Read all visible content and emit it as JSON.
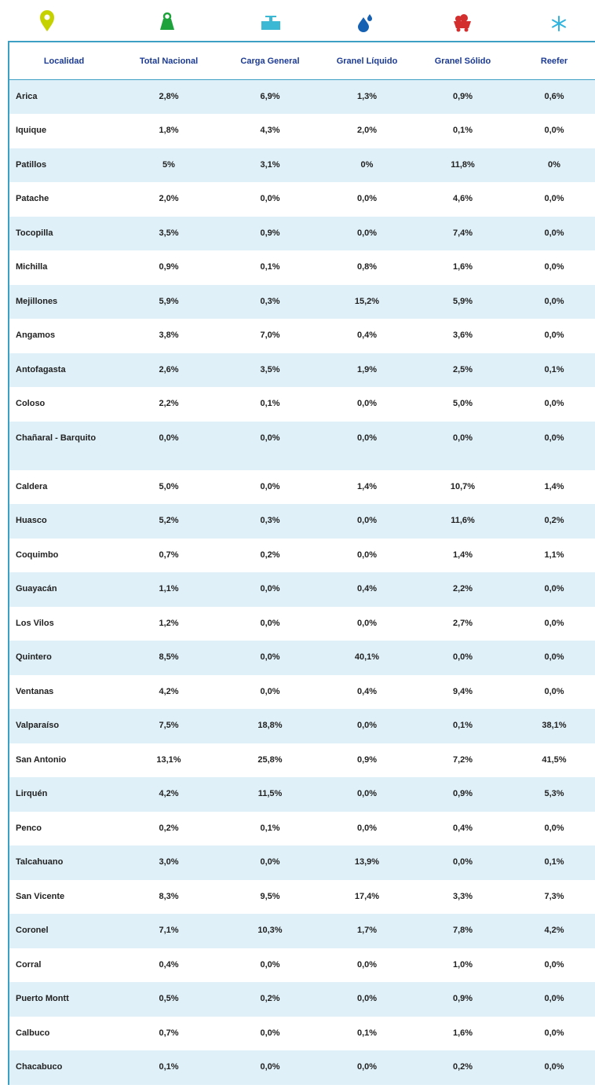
{
  "table": {
    "header": [
      "Localidad",
      "Total Nacional",
      "Carga General",
      "Granel Líquido",
      "Granel Sólido",
      "Reefer"
    ],
    "rows": [
      [
        "Arica",
        "2,8%",
        "6,9%",
        "1,3%",
        "0,9%",
        "0,6%"
      ],
      [
        "Iquique",
        "1,8%",
        "4,3%",
        "2,0%",
        "0,1%",
        "0,0%"
      ],
      [
        "Patillos",
        "5%",
        "3,1%",
        "0%",
        "11,8%",
        "0%"
      ],
      [
        "Patache",
        "2,0%",
        "0,0%",
        "0,0%",
        "4,6%",
        "0,0%"
      ],
      [
        "Tocopilla",
        "3,5%",
        "0,9%",
        "0,0%",
        "7,4%",
        "0,0%"
      ],
      [
        "Michilla",
        "0,9%",
        "0,1%",
        "0,8%",
        "1,6%",
        "0,0%"
      ],
      [
        "Mejillones",
        "5,9%",
        "0,3%",
        "15,2%",
        "5,9%",
        "0,0%"
      ],
      [
        "Angamos",
        "3,8%",
        "7,0%",
        "0,4%",
        "3,6%",
        "0,0%"
      ],
      [
        "Antofagasta",
        "2,6%",
        "3,5%",
        "1,9%",
        "2,5%",
        "0,1%"
      ],
      [
        "Coloso",
        "2,2%",
        "0,1%",
        "0,0%",
        "5,0%",
        "0,0%"
      ],
      [
        "Chañaral - Barquito",
        "0,0%",
        "0,0%",
        "0,0%",
        "0,0%",
        "0,0%"
      ],
      [
        "Caldera",
        "5,0%",
        "0,0%",
        "1,4%",
        "10,7%",
        "1,4%"
      ],
      [
        "Huasco",
        "5,2%",
        "0,3%",
        "0,0%",
        "11,6%",
        "0,2%"
      ],
      [
        "Coquimbo",
        "0,7%",
        "0,2%",
        "0,0%",
        "1,4%",
        "1,1%"
      ],
      [
        "Guayacán",
        "1,1%",
        "0,0%",
        "0,4%",
        "2,2%",
        "0,0%"
      ],
      [
        "Los Vilos",
        "1,2%",
        "0,0%",
        "0,0%",
        "2,7%",
        "0,0%"
      ],
      [
        "Quintero",
        "8,5%",
        "0,0%",
        "40,1%",
        "0,0%",
        "0,0%"
      ],
      [
        "Ventanas",
        "4,2%",
        "0,0%",
        "0,4%",
        "9,4%",
        "0,0%"
      ],
      [
        "Valparaíso",
        "7,5%",
        "18,8%",
        "0,0%",
        "0,1%",
        "38,1%"
      ],
      [
        "San Antonio",
        "13,1%",
        "25,8%",
        "0,9%",
        "7,2%",
        "41,5%"
      ],
      [
        "Lirquén",
        "4,2%",
        "11,5%",
        "0,0%",
        "0,9%",
        "5,3%"
      ],
      [
        "Penco",
        "0,2%",
        "0,1%",
        "0,0%",
        "0,4%",
        "0,0%"
      ],
      [
        "Talcahuano",
        "3,0%",
        "0,0%",
        "13,9%",
        "0,0%",
        "0,1%"
      ],
      [
        "San Vicente",
        "8,3%",
        "9,5%",
        "17,4%",
        "3,3%",
        "7,3%"
      ],
      [
        "Coronel",
        "7,1%",
        "10,3%",
        "1,7%",
        "7,8%",
        "4,2%"
      ],
      [
        "Corral",
        "0,4%",
        "0,0%",
        "0,0%",
        "1,0%",
        "0,0%"
      ],
      [
        "Puerto Montt",
        "0,5%",
        "0,2%",
        "0,0%",
        "0,9%",
        "0,0%"
      ],
      [
        "Calbuco",
        "0,7%",
        "0,0%",
        "0,1%",
        "1,6%",
        "0,0%"
      ],
      [
        "Chacabuco",
        "0,1%",
        "0,0%",
        "0,0%",
        "0,2%",
        "0,0%"
      ]
    ]
  }
}
